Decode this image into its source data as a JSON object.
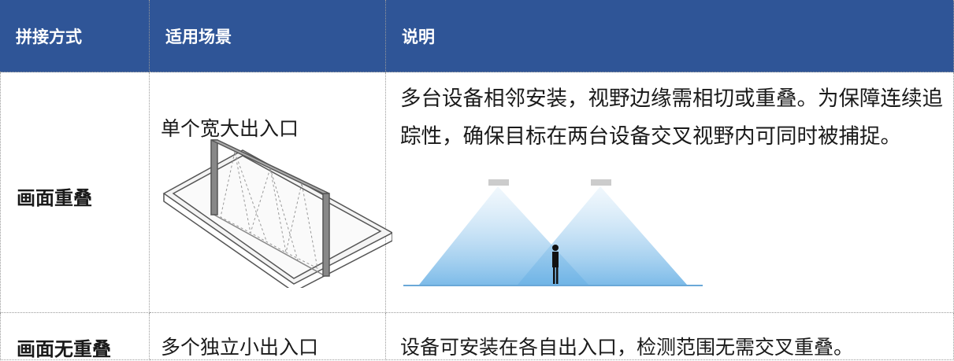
{
  "table": {
    "header": [
      "拼接方式",
      "适用场景",
      "说明"
    ],
    "rows": [
      [
        "画面重叠",
        "单个宽大出入口",
        "多台设备相邻安装，视野边缘需相切或重叠。为保障连续追踪性，确保目标在两台设备交叉视野内可同时被捕捉。"
      ],
      [
        "画面无重叠",
        "多个独立小出入口",
        "设备可安装在各自出入口，检测范围无需交叉重叠。"
      ]
    ]
  }
}
